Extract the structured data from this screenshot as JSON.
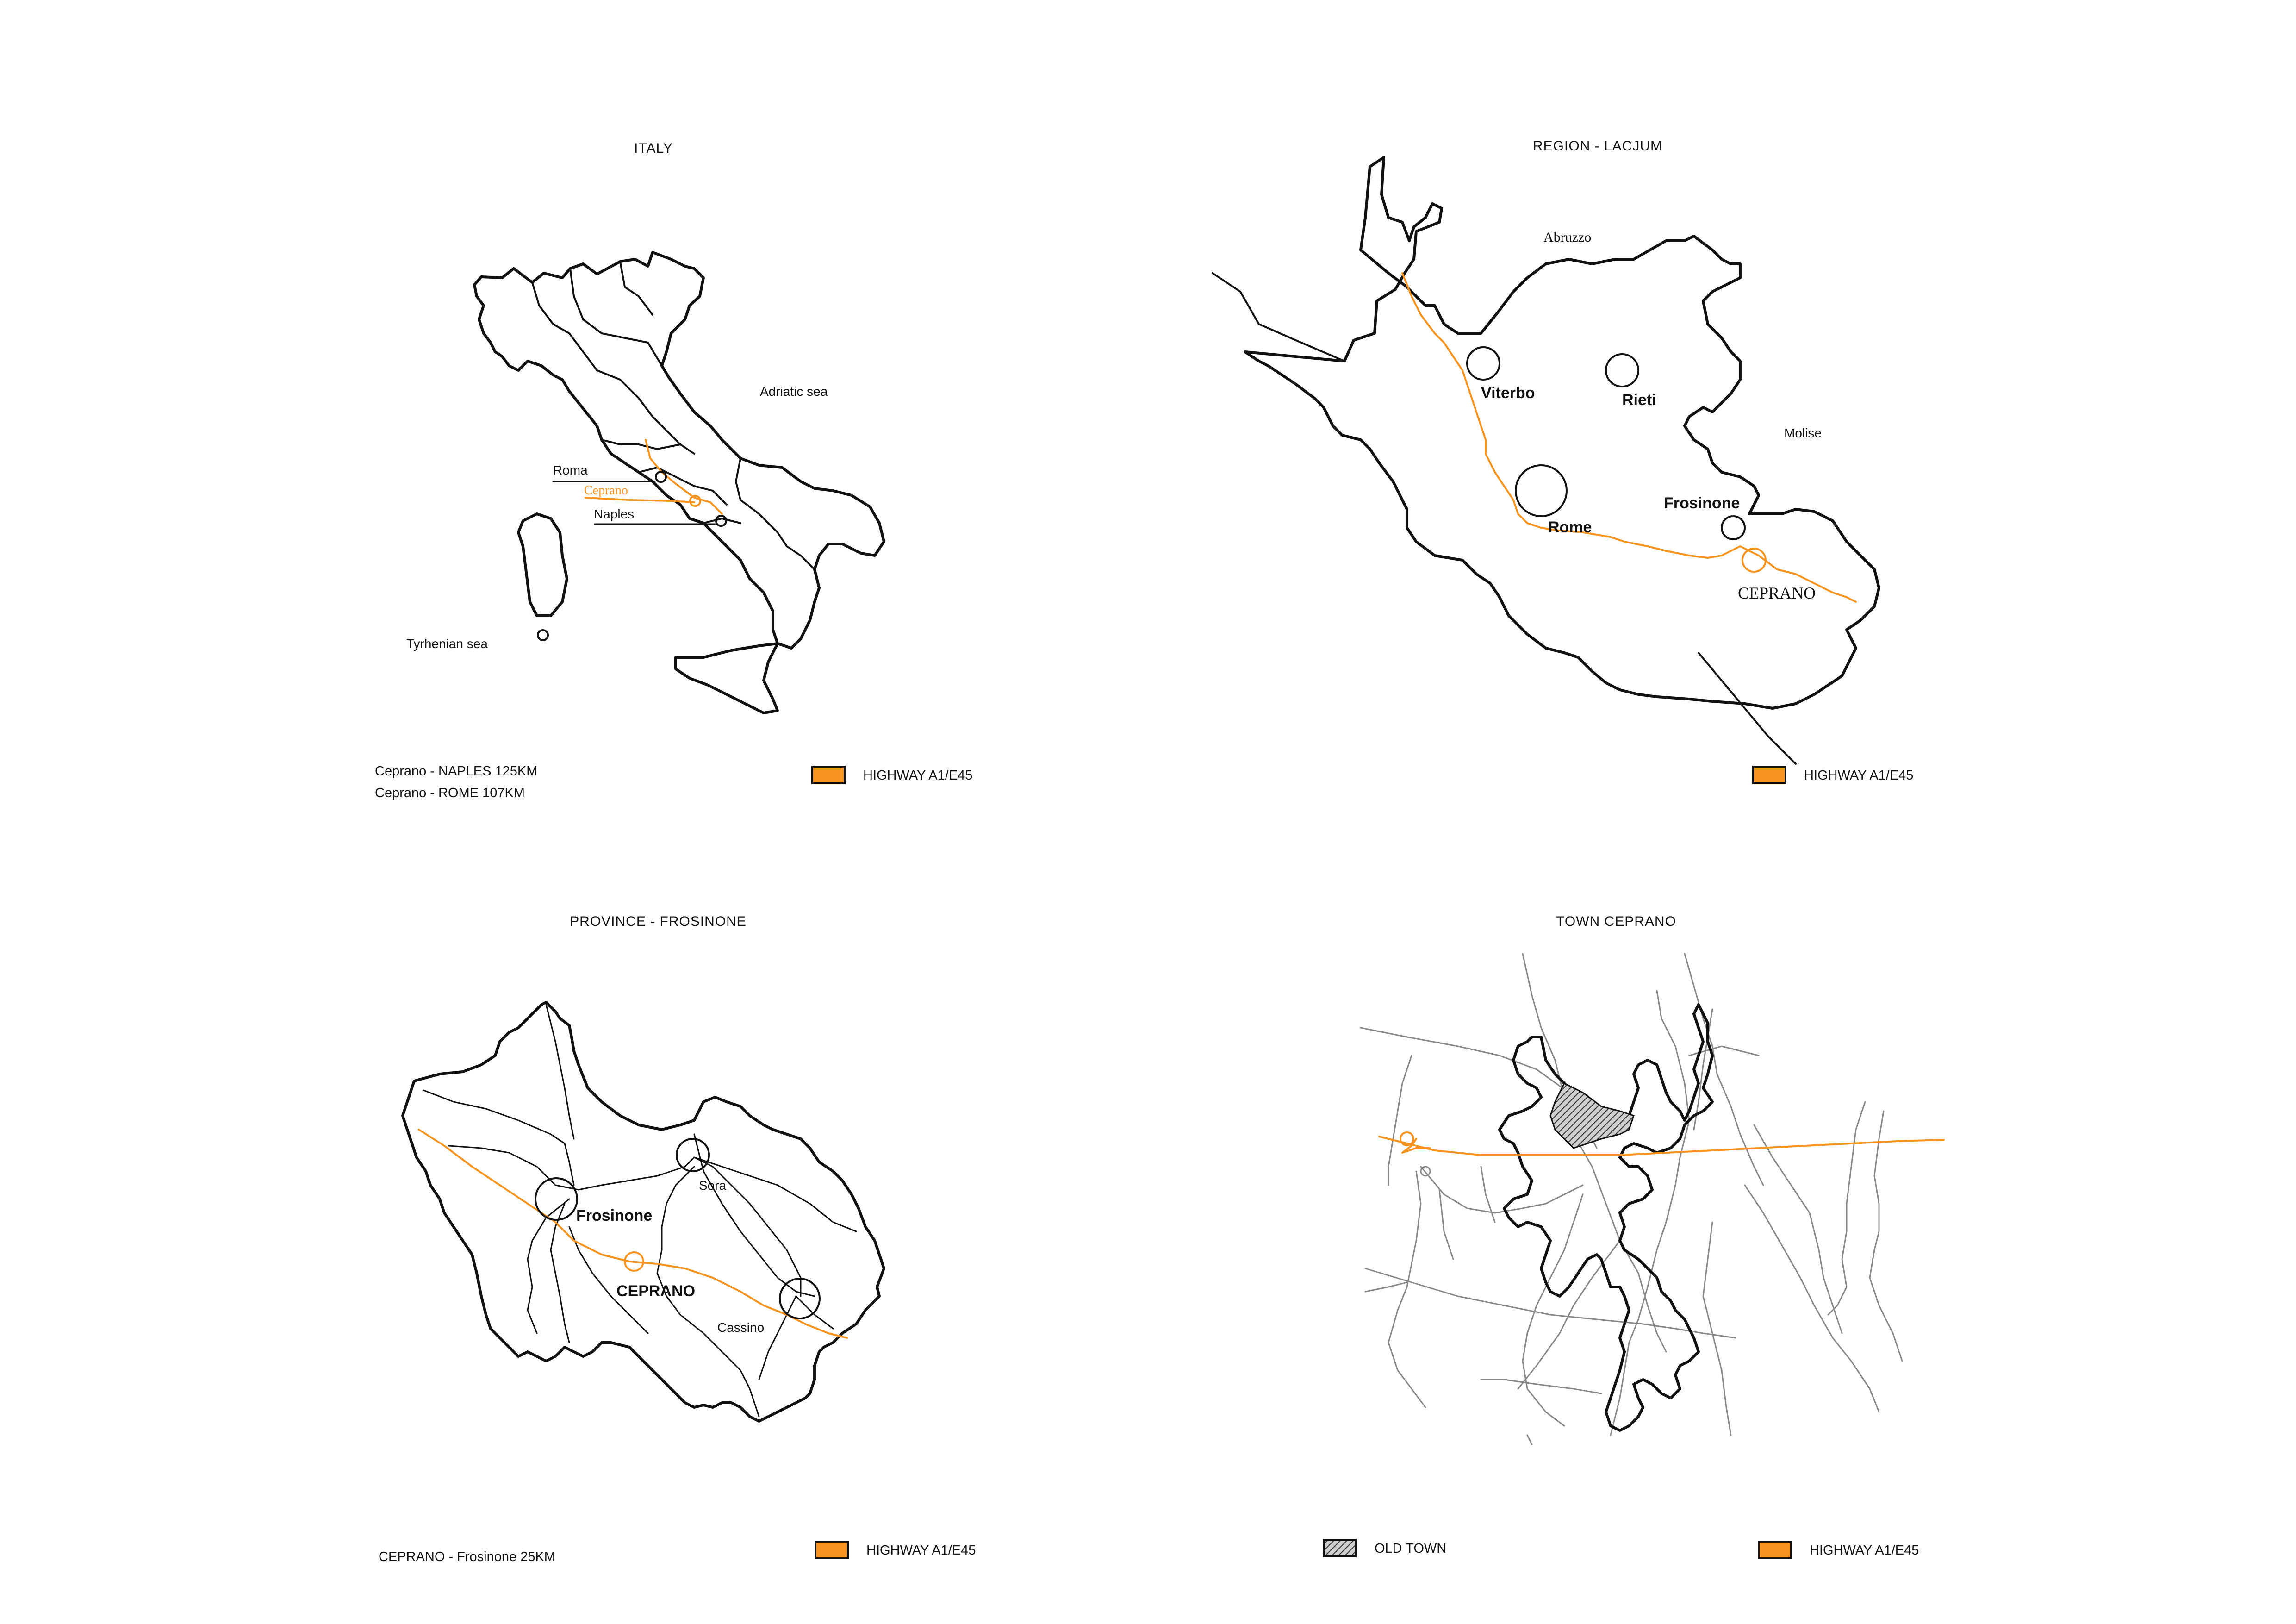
{
  "colors": {
    "highway": "#F7931E",
    "ink": "#111111",
    "road_grey": "#888888",
    "old_town": "#555555"
  },
  "panels": {
    "italy": {
      "title": "ITALY",
      "labels": {
        "adriatic": "Adriatic sea",
        "tyrrhenian": "Tyrhenian sea",
        "roma": "Roma",
        "ceprano": "Ceprano",
        "naples": "Naples"
      },
      "notes": [
        "Ceprano - NAPLES 125KM",
        "Ceprano - ROME 107KM"
      ],
      "legend": {
        "highway": "HIGHWAY A1/E45"
      }
    },
    "region": {
      "title": "REGION - LACJUM",
      "labels": {
        "abruzzo": "Abruzzo",
        "molise": "Molise",
        "viterbo": "Viterbo",
        "rieti": "Rieti",
        "rome": "Rome",
        "frosinone": "Frosinone",
        "ceprano": "CEPRANO"
      },
      "legend": {
        "highway": "HIGHWAY A1/E45"
      }
    },
    "province": {
      "title": "PROVINCE - FROSINONE",
      "labels": {
        "sora": "Sora",
        "frosinone": "Frosinone",
        "ceprano": "CEPRANO",
        "cassino": "Cassino"
      },
      "notes": [
        "CEPRANO - Frosinone 25KM"
      ],
      "legend": {
        "highway": "HIGHWAY A1/E45"
      }
    },
    "town": {
      "title": "TOWN CEPRANO",
      "legend": {
        "old_town": "OLD TOWN",
        "highway": "HIGHWAY A1/E45"
      }
    }
  }
}
